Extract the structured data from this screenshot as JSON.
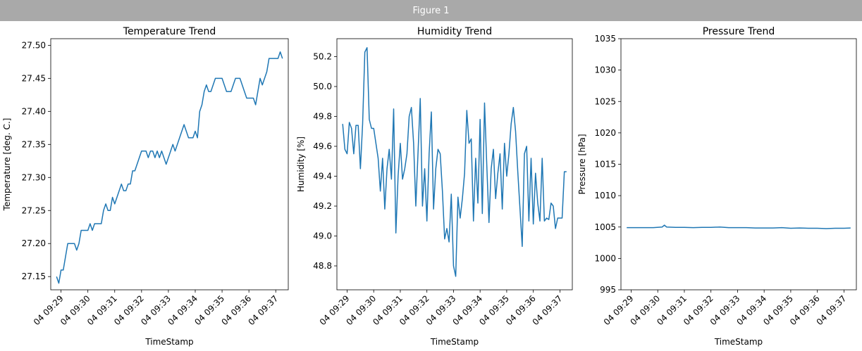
{
  "window": {
    "title": "Figure 1"
  },
  "chart_data": [
    {
      "type": "line",
      "title": "Temperature Trend",
      "xlabel": "TimeStamp",
      "ylabel": "Temperature [deg. C.]",
      "ylim": [
        27.13,
        27.51
      ],
      "yticks": [
        27.15,
        27.2,
        27.25,
        27.3,
        27.35,
        27.4,
        27.45,
        27.5
      ],
      "yticklabels": [
        "27.15",
        "27.20",
        "27.25",
        "27.30",
        "27.35",
        "27.40",
        "27.45",
        "27.50"
      ],
      "xlim": [
        "04 09:28:37",
        "04 09:37:28"
      ],
      "xticks": [
        "04 09:29",
        "04 09:30",
        "04 09:31",
        "04 09:32",
        "04 09:33",
        "04 09:34",
        "04 09:35",
        "04 09:36",
        "04 09:37"
      ],
      "color": "#1f77b4",
      "series": [
        {
          "x": [
            "04 09:28:50",
            "04 09:28:55",
            "04 09:29:00",
            "04 09:29:05",
            "04 09:29:10",
            "04 09:29:15",
            "04 09:29:20",
            "04 09:29:25",
            "04 09:29:30",
            "04 09:29:35",
            "04 09:29:40",
            "04 09:29:45",
            "04 09:29:50",
            "04 09:29:55",
            "04 09:30:00",
            "04 09:30:05",
            "04 09:30:10",
            "04 09:30:15",
            "04 09:30:20",
            "04 09:30:25",
            "04 09:30:30",
            "04 09:30:35",
            "04 09:30:40",
            "04 09:30:45",
            "04 09:30:50",
            "04 09:30:55",
            "04 09:31:00",
            "04 09:31:05",
            "04 09:31:10",
            "04 09:31:15",
            "04 09:31:20",
            "04 09:31:25",
            "04 09:31:30",
            "04 09:31:35",
            "04 09:31:40",
            "04 09:31:45",
            "04 09:31:50",
            "04 09:31:55",
            "04 09:32:00",
            "04 09:32:05",
            "04 09:32:10",
            "04 09:32:15",
            "04 09:32:20",
            "04 09:32:25",
            "04 09:32:30",
            "04 09:32:35",
            "04 09:32:40",
            "04 09:32:45",
            "04 09:32:50",
            "04 09:32:55",
            "04 09:33:00",
            "04 09:33:05",
            "04 09:33:10",
            "04 09:33:15",
            "04 09:33:20",
            "04 09:33:25",
            "04 09:33:30",
            "04 09:33:35",
            "04 09:33:40",
            "04 09:33:45",
            "04 09:33:50",
            "04 09:33:55",
            "04 09:34:00",
            "04 09:34:05",
            "04 09:34:10",
            "04 09:34:15",
            "04 09:34:20",
            "04 09:34:25",
            "04 09:34:30",
            "04 09:34:35",
            "04 09:34:40",
            "04 09:34:45",
            "04 09:34:50",
            "04 09:34:55",
            "04 09:35:00",
            "04 09:35:05",
            "04 09:35:10",
            "04 09:35:15",
            "04 09:35:20",
            "04 09:35:25",
            "04 09:35:30",
            "04 09:35:35",
            "04 09:35:40",
            "04 09:35:45",
            "04 09:35:50",
            "04 09:35:55",
            "04 09:36:00",
            "04 09:36:05",
            "04 09:36:10",
            "04 09:36:15",
            "04 09:36:20",
            "04 09:36:25",
            "04 09:36:30",
            "04 09:36:35",
            "04 09:36:40",
            "04 09:36:45",
            "04 09:36:50",
            "04 09:36:55",
            "04 09:37:00",
            "04 09:37:05",
            "04 09:37:10",
            "04 09:37:15"
          ],
          "values": [
            27.15,
            27.14,
            27.16,
            27.16,
            27.18,
            27.2,
            27.2,
            27.2,
            27.2,
            27.19,
            27.2,
            27.22,
            27.22,
            27.22,
            27.22,
            27.23,
            27.22,
            27.23,
            27.23,
            27.23,
            27.23,
            27.25,
            27.26,
            27.25,
            27.25,
            27.27,
            27.26,
            27.27,
            27.28,
            27.29,
            27.28,
            27.28,
            27.29,
            27.29,
            27.31,
            27.31,
            27.32,
            27.33,
            27.34,
            27.34,
            27.34,
            27.33,
            27.34,
            27.34,
            27.33,
            27.34,
            27.33,
            27.34,
            27.33,
            27.32,
            27.33,
            27.34,
            27.35,
            27.34,
            27.35,
            27.36,
            27.37,
            27.38,
            27.37,
            27.36,
            27.36,
            27.36,
            27.37,
            27.36,
            27.4,
            27.41,
            27.43,
            27.44,
            27.43,
            27.43,
            27.44,
            27.45,
            27.45,
            27.45,
            27.45,
            27.44,
            27.43,
            27.43,
            27.43,
            27.44,
            27.45,
            27.45,
            27.45,
            27.44,
            27.43,
            27.42,
            27.42,
            27.42,
            27.42,
            27.41,
            27.43,
            27.45,
            27.44,
            27.45,
            27.46,
            27.48,
            27.48,
            27.48,
            27.48,
            27.48,
            27.49,
            27.48
          ]
        }
      ]
    },
    {
      "type": "line",
      "title": "Humidity Trend",
      "xlabel": "TimeStamp",
      "ylabel": "Humidity [%]",
      "ylim": [
        48.64,
        50.32
      ],
      "yticks": [
        48.8,
        49.0,
        49.2,
        49.4,
        49.6,
        49.8,
        50.0,
        50.2
      ],
      "yticklabels": [
        "48.8",
        "49.0",
        "49.2",
        "49.4",
        "49.6",
        "49.8",
        "50.0",
        "50.2"
      ],
      "xlim": [
        "04 09:28:37",
        "04 09:37:28"
      ],
      "xticks": [
        "04 09:29",
        "04 09:30",
        "04 09:31",
        "04 09:32",
        "04 09:33",
        "04 09:34",
        "04 09:35",
        "04 09:36",
        "04 09:37"
      ],
      "color": "#1f77b4",
      "series": [
        {
          "x": [
            "04 09:28:50",
            "04 09:28:55",
            "04 09:29:00",
            "04 09:29:05",
            "04 09:29:10",
            "04 09:29:15",
            "04 09:29:20",
            "04 09:29:25",
            "04 09:29:30",
            "04 09:29:35",
            "04 09:29:40",
            "04 09:29:45",
            "04 09:29:50",
            "04 09:29:55",
            "04 09:30:00",
            "04 09:30:05",
            "04 09:30:10",
            "04 09:30:15",
            "04 09:30:20",
            "04 09:30:25",
            "04 09:30:30",
            "04 09:30:35",
            "04 09:30:40",
            "04 09:30:45",
            "04 09:30:50",
            "04 09:30:55",
            "04 09:31:00",
            "04 09:31:05",
            "04 09:31:10",
            "04 09:31:15",
            "04 09:31:20",
            "04 09:31:25",
            "04 09:31:30",
            "04 09:31:35",
            "04 09:31:40",
            "04 09:31:45",
            "04 09:31:50",
            "04 09:31:55",
            "04 09:32:00",
            "04 09:32:05",
            "04 09:32:10",
            "04 09:32:15",
            "04 09:32:20",
            "04 09:32:25",
            "04 09:32:30",
            "04 09:32:35",
            "04 09:32:40",
            "04 09:32:45",
            "04 09:32:50",
            "04 09:32:55",
            "04 09:33:00",
            "04 09:33:05",
            "04 09:33:10",
            "04 09:33:15",
            "04 09:33:20",
            "04 09:33:25",
            "04 09:33:30",
            "04 09:33:35",
            "04 09:33:40",
            "04 09:33:45",
            "04 09:33:50",
            "04 09:33:55",
            "04 09:34:00",
            "04 09:34:05",
            "04 09:34:10",
            "04 09:34:15",
            "04 09:34:20",
            "04 09:34:25",
            "04 09:34:30",
            "04 09:34:35",
            "04 09:34:40",
            "04 09:34:45",
            "04 09:34:50",
            "04 09:34:55",
            "04 09:35:00",
            "04 09:35:05",
            "04 09:35:10",
            "04 09:35:15",
            "04 09:35:20",
            "04 09:35:25",
            "04 09:35:30",
            "04 09:35:35",
            "04 09:35:40",
            "04 09:35:45",
            "04 09:35:50",
            "04 09:35:55",
            "04 09:36:00",
            "04 09:36:05",
            "04 09:36:10",
            "04 09:36:15",
            "04 09:36:20",
            "04 09:36:25",
            "04 09:36:30",
            "04 09:36:35",
            "04 09:36:40",
            "04 09:36:45",
            "04 09:36:50",
            "04 09:36:55",
            "04 09:37:00",
            "04 09:37:05",
            "04 09:37:10",
            "04 09:37:15"
          ],
          "values": [
            49.75,
            49.58,
            49.55,
            49.76,
            49.72,
            49.55,
            49.74,
            49.74,
            49.45,
            49.75,
            50.23,
            50.26,
            49.78,
            49.72,
            49.72,
            49.62,
            49.52,
            49.3,
            49.52,
            49.18,
            49.45,
            49.58,
            49.38,
            49.85,
            49.02,
            49.4,
            49.62,
            49.38,
            49.45,
            49.55,
            49.8,
            49.86,
            49.62,
            49.2,
            49.56,
            49.92,
            49.2,
            49.45,
            49.1,
            49.55,
            49.83,
            49.18,
            49.45,
            49.58,
            49.55,
            49.3,
            48.98,
            49.05,
            48.96,
            49.28,
            48.8,
            48.73,
            49.26,
            49.12,
            49.25,
            49.42,
            49.84,
            49.62,
            49.65,
            49.1,
            49.52,
            49.22,
            49.78,
            49.15,
            49.89,
            49.48,
            49.09,
            49.45,
            49.58,
            49.25,
            49.42,
            49.55,
            49.18,
            49.62,
            49.4,
            49.55,
            49.75,
            49.86,
            49.7,
            49.43,
            49.18,
            48.93,
            49.55,
            49.6,
            49.1,
            49.52,
            49.08,
            49.42,
            49.22,
            49.1,
            49.52,
            49.1,
            49.12,
            49.11,
            49.22,
            49.2,
            49.05,
            49.12,
            49.12,
            49.12,
            49.43,
            49.43
          ]
        }
      ]
    },
    {
      "type": "line",
      "title": "Pressure Trend",
      "xlabel": "TimeStamp",
      "ylabel": "Pressure [hPa]",
      "ylim": [
        995,
        1035
      ],
      "yticks": [
        995,
        1000,
        1005,
        1010,
        1015,
        1020,
        1025,
        1030,
        1035
      ],
      "yticklabels": [
        "995",
        "1000",
        "1005",
        "1010",
        "1015",
        "1020",
        "1025",
        "1030",
        "1035"
      ],
      "xlim": [
        "04 09:28:37",
        "04 09:37:28"
      ],
      "xticks": [
        "04 09:29",
        "04 09:30",
        "04 09:31",
        "04 09:32",
        "04 09:33",
        "04 09:34",
        "04 09:35",
        "04 09:36",
        "04 09:37"
      ],
      "color": "#1f77b4",
      "series": [
        {
          "x": [
            "04 09:28:50",
            "04 09:29:10",
            "04 09:29:30",
            "04 09:29:50",
            "04 09:30:10",
            "04 09:30:15",
            "04 09:30:20",
            "04 09:30:40",
            "04 09:31:00",
            "04 09:31:20",
            "04 09:31:40",
            "04 09:32:00",
            "04 09:32:20",
            "04 09:32:40",
            "04 09:33:00",
            "04 09:33:20",
            "04 09:33:40",
            "04 09:34:00",
            "04 09:34:20",
            "04 09:34:40",
            "04 09:35:00",
            "04 09:35:20",
            "04 09:35:40",
            "04 09:36:00",
            "04 09:36:20",
            "04 09:36:40",
            "04 09:37:00",
            "04 09:37:15"
          ],
          "values": [
            1004.9,
            1004.9,
            1004.9,
            1004.9,
            1005.0,
            1005.3,
            1005.0,
            1004.95,
            1004.95,
            1004.9,
            1004.95,
            1004.95,
            1005.0,
            1004.9,
            1004.9,
            1004.9,
            1004.85,
            1004.85,
            1004.85,
            1004.9,
            1004.8,
            1004.85,
            1004.8,
            1004.8,
            1004.75,
            1004.8,
            1004.8,
            1004.85
          ]
        }
      ]
    }
  ]
}
